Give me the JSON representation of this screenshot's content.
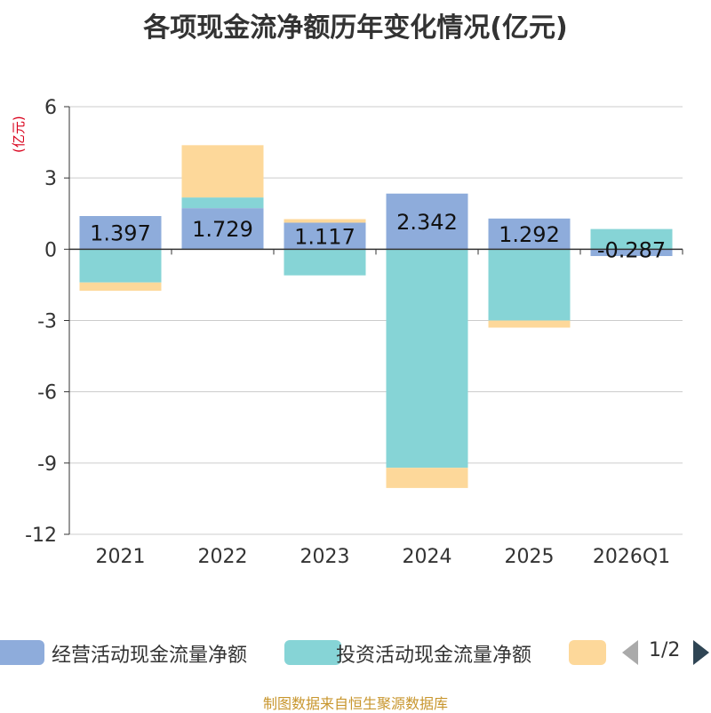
{
  "chart_data": {
    "type": "bar",
    "stacked": true,
    "title": "各项现金流净额历年变化情况(亿元)",
    "ylabel": "(亿元)",
    "xlabel": "",
    "categories": [
      "2021",
      "2022",
      "2023",
      "2024",
      "2025",
      "2026Q1"
    ],
    "ylim": [
      -12,
      6
    ],
    "yticks": [
      6,
      3,
      0,
      -3,
      -6,
      -9,
      -12
    ],
    "grid": true,
    "series": [
      {
        "name": "经营活动现金流量净额",
        "color": "#8eacdb",
        "values": [
          1.397,
          1.729,
          1.117,
          2.342,
          1.292,
          -0.287
        ]
      },
      {
        "name": "投资活动现金流量净额",
        "color": "#86d4d6",
        "values": [
          -1.4,
          0.45,
          -1.1,
          -9.2,
          -3.0,
          0.85
        ]
      },
      {
        "name": "",
        "color": "#fdd89a",
        "values": [
          -0.35,
          2.2,
          0.15,
          -0.85,
          -0.3,
          0.0
        ]
      }
    ],
    "data_labels": [
      "1.397",
      "1.729",
      "1.117",
      "2.342",
      "1.292",
      "-0.287"
    ],
    "legend_position": "bottom"
  },
  "legend": {
    "items": [
      {
        "label": "经营活动现金流量净额",
        "color": "#8eacdb"
      },
      {
        "label": "投资活动现金流量净额",
        "color": "#86d4d6"
      },
      {
        "label": "",
        "color": "#fdd89a"
      }
    ],
    "page": "1/2"
  },
  "source": "制图数据来自恒生聚源数据库"
}
